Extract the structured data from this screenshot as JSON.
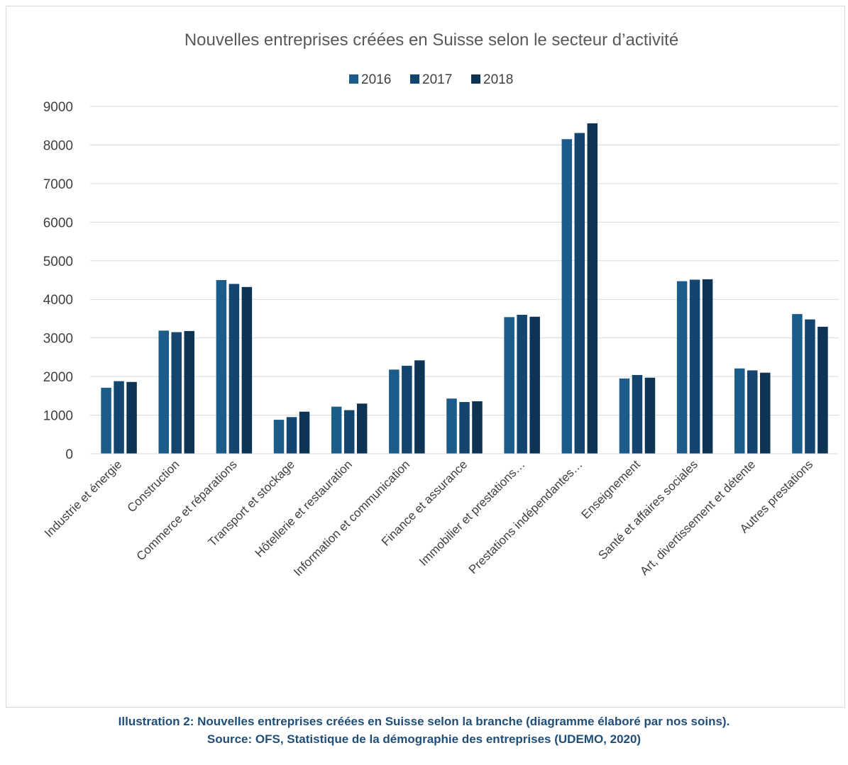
{
  "chart_data": {
    "type": "bar",
    "title": "Nouvelles entreprises créées en Suisse selon le secteur d’activité",
    "xlabel": "",
    "ylabel": "",
    "ylim": [
      0,
      9000
    ],
    "yticks": [
      0,
      1000,
      2000,
      3000,
      4000,
      5000,
      6000,
      7000,
      8000,
      9000
    ],
    "grid": true,
    "legend_position": "top",
    "categories": [
      "Industrie et énergie",
      "Construction",
      "Commerce et réparations",
      "Transport et stockage",
      "Hôtellerie et restauration",
      "Information et communication",
      "Finance et assurance",
      "Immobilier et prestations…",
      "Prestations indépendantes…",
      "Enseignement",
      "Santé et affaires sociales",
      "Art, divertissement et détente",
      "Autres prestations"
    ],
    "series": [
      {
        "name": "2016",
        "color": "#1b5c8a",
        "values": [
          1710,
          3190,
          4500,
          880,
          1220,
          2180,
          1430,
          3540,
          8150,
          1950,
          4470,
          2210,
          3620
        ]
      },
      {
        "name": "2017",
        "color": "#13456e",
        "values": [
          1880,
          3150,
          4400,
          950,
          1130,
          2280,
          1340,
          3600,
          8310,
          2040,
          4510,
          2160,
          3480
        ]
      },
      {
        "name": "2018",
        "color": "#0d3455",
        "values": [
          1860,
          3180,
          4320,
          1090,
          1300,
          2420,
          1360,
          3550,
          8560,
          1970,
          4520,
          2100,
          3290
        ]
      }
    ]
  },
  "caption": {
    "line1": "Illustration 2: Nouvelles entreprises créées en Suisse selon la branche (diagramme élaboré par nos soins).",
    "line2": "Source: OFS, Statistique de la démographie des entreprises (UDEMO, 2020)"
  }
}
